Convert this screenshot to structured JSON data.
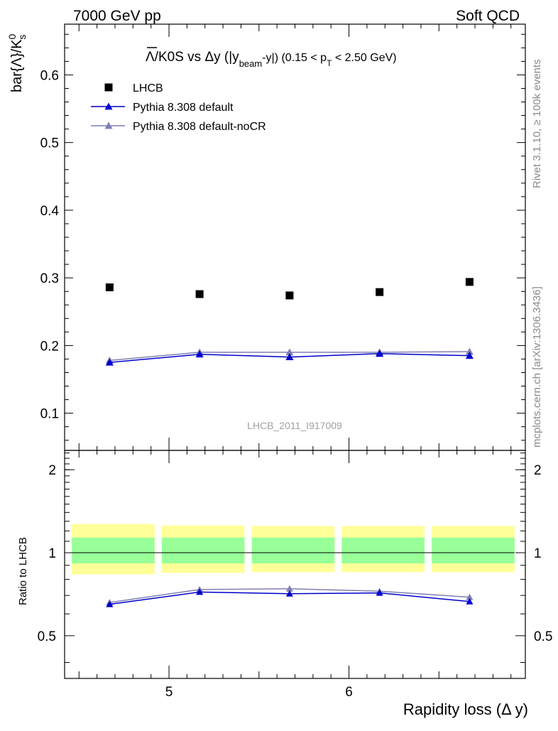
{
  "header": {
    "left": "7000 GeV pp",
    "right": "Soft QCD"
  },
  "side": {
    "rivet": "Rivet 3.1.10, ≥ 100k events",
    "mcplots": "mcplots.cern.ch [arXiv:1306.3436]"
  },
  "watermark": "LHCB_2011_I917009",
  "chart_data": {
    "type": "scatter",
    "title": "Λ̄/K0S vs Δy (|y_beam-y|) (0.15 < p_T < 2.50 GeV)",
    "title_parts": {
      "lambda": "Λ",
      "main": "/K0S vs Δy (|y",
      "beam_sub": "beam",
      "mid": "-y|) (0.15 < p",
      "pt_sub": "T",
      "end": " < 2.50 GeV)"
    },
    "ylabel": "bar{Λ}/K",
    "ylabel_sup": "0",
    "ylabel_sub": "s",
    "xlabel": "Rapidity loss (Δ y)",
    "ratio_ylabel": "Ratio to LHCB",
    "xlim": [
      4.42,
      6.98
    ],
    "ylim": [
      0.045,
      0.675
    ],
    "ratio_ylim": [
      0.35,
      2.35
    ],
    "ratio_log": true,
    "x_ticks": [
      5,
      6
    ],
    "y_ticks": [
      0.1,
      0.2,
      0.3,
      0.4,
      0.5,
      0.6
    ],
    "ratio_ticks": [
      0.5,
      1,
      2
    ],
    "x": [
      4.67,
      5.17,
      5.67,
      6.17,
      6.67
    ],
    "bins": [
      [
        4.42,
        4.92
      ],
      [
        4.92,
        5.42
      ],
      [
        5.42,
        5.92
      ],
      [
        5.92,
        6.42
      ],
      [
        6.42,
        6.92
      ]
    ],
    "series": [
      {
        "name": "LHCB",
        "marker": "square",
        "color": "#000000",
        "values": [
          0.286,
          0.276,
          0.274,
          0.279,
          0.294
        ]
      },
      {
        "name": "Pythia 8.308 default",
        "marker": "triangle",
        "color": "#0000cc",
        "values": [
          0.175,
          0.187,
          0.183,
          0.188,
          0.185
        ]
      },
      {
        "name": "Pythia 8.308 default-noCR",
        "marker": "triangle",
        "color": "#7f7fb2",
        "values": [
          0.178,
          0.19,
          0.19,
          0.19,
          0.191
        ]
      }
    ],
    "ratio_series": [
      {
        "name": "Pythia 8.308 default",
        "values": [
          0.65,
          0.72,
          0.71,
          0.715,
          0.665
        ]
      },
      {
        "name": "Pythia 8.308 default-noCR",
        "values": [
          0.66,
          0.735,
          0.74,
          0.725,
          0.69
        ]
      }
    ],
    "uncertainty_bands": {
      "inner": [
        [
          0.915,
          1.135
        ],
        [
          0.915,
          1.135
        ],
        [
          0.915,
          1.135
        ],
        [
          0.915,
          1.135
        ],
        [
          0.915,
          1.135
        ]
      ],
      "outer": [
        [
          0.835,
          1.27
        ],
        [
          0.845,
          1.255
        ],
        [
          0.85,
          1.25
        ],
        [
          0.85,
          1.25
        ],
        [
          0.85,
          1.25
        ]
      ],
      "inner_color": "#99ff99",
      "outer_color": "#ffff99"
    },
    "legend_position": "top-left"
  }
}
